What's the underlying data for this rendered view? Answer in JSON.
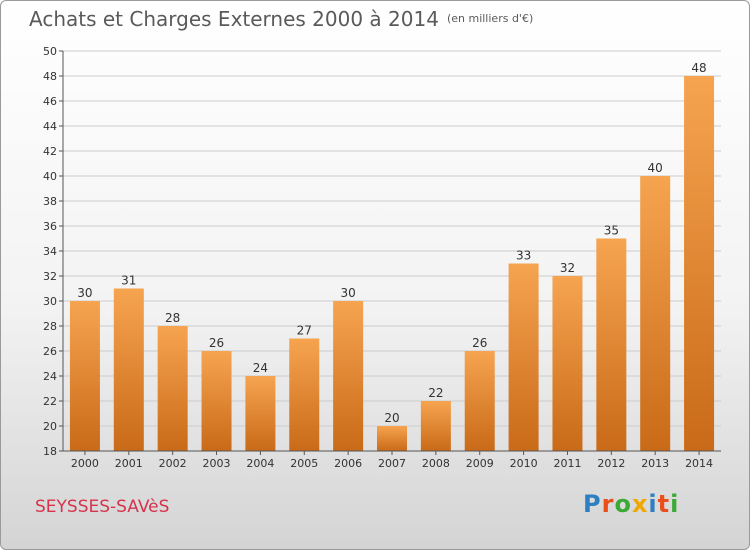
{
  "title": "Achats et Charges Externes 2000 à 2014",
  "unit": "(en milliers d'€)",
  "city": "SEYSSES-SAVèS",
  "logo": {
    "text": "Proxiti",
    "colors": [
      "#2e7fc2",
      "#e94e1b",
      "#3aa935",
      "#f0a800",
      "#2e7fc2",
      "#e94e1b",
      "#3aa935"
    ]
  },
  "colors": {
    "bar_light": "#f6a450",
    "bar_dark": "#c96a18",
    "axis": "#555555",
    "grid": "#cccccc",
    "label": "#333333"
  },
  "chart_data": {
    "type": "bar",
    "categories": [
      "2000",
      "2001",
      "2002",
      "2003",
      "2004",
      "2005",
      "2006",
      "2007",
      "2008",
      "2009",
      "2010",
      "2011",
      "2012",
      "2013",
      "2014"
    ],
    "values": [
      30,
      31,
      28,
      26,
      24,
      27,
      30,
      20,
      22,
      26,
      33,
      32,
      35,
      40,
      48
    ],
    "ylim": [
      18,
      50
    ],
    "yticks": [
      18,
      20,
      22,
      24,
      26,
      28,
      30,
      32,
      34,
      36,
      38,
      40,
      42,
      44,
      46,
      48,
      50
    ],
    "grid": true,
    "data_labels": true
  }
}
